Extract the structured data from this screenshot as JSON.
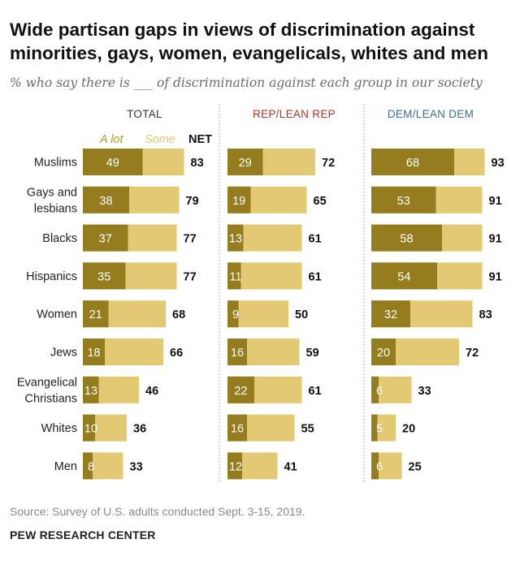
{
  "header": {
    "title": "Wide partisan gaps in views of discrimination against minorities, gays, women, evangelicals, whites and men",
    "subtitle": "% who say there is ___ of discrimination against each group in our society"
  },
  "footer": {
    "source": "Source: Survey of U.S. adults conducted Sept. 3-15, 2019.",
    "org": "PEW RESEARCH CENTER"
  },
  "colors": {
    "a_lot": "#957c1f",
    "some": "#e3c974",
    "rep_header": "#b3342c",
    "dem_header": "#3c6e8f",
    "total_header": "#333333",
    "legend_text": "#b89a34",
    "divider": "#9a9a9a"
  },
  "chart_data": {
    "type": "bar",
    "orientation": "horizontal",
    "stacked": true,
    "categories": [
      "Muslims",
      "Gays and lesbians",
      "Blacks",
      "Hispanics",
      "Women",
      "Jews",
      "Evangelical Christians",
      "Whites",
      "Men"
    ],
    "category_lines": [
      [
        "Muslims"
      ],
      [
        "Gays and",
        "lesbians"
      ],
      [
        "Blacks"
      ],
      [
        "Hispanics"
      ],
      [
        "Women"
      ],
      [
        "Jews"
      ],
      [
        "Evangelical",
        "Christians"
      ],
      [
        "Whites"
      ],
      [
        "Men"
      ]
    ],
    "legend": {
      "a_lot": "A lot",
      "some": "Some",
      "net": "NET"
    },
    "panels": [
      {
        "title": "TOTAL",
        "a_lot": [
          49,
          38,
          37,
          35,
          21,
          18,
          13,
          10,
          8
        ],
        "net": [
          83,
          79,
          77,
          77,
          68,
          66,
          46,
          36,
          33
        ]
      },
      {
        "title": "REP/LEAN REP",
        "a_lot": [
          29,
          19,
          13,
          11,
          9,
          16,
          22,
          16,
          12
        ],
        "net": [
          72,
          65,
          61,
          61,
          50,
          59,
          61,
          55,
          41
        ]
      },
      {
        "title": "DEM/LEAN DEM",
        "a_lot": [
          68,
          53,
          58,
          54,
          32,
          20,
          6,
          5,
          6
        ],
        "net": [
          93,
          91,
          91,
          91,
          83,
          72,
          33,
          20,
          25
        ]
      }
    ],
    "xlim": [
      0,
      100
    ]
  }
}
